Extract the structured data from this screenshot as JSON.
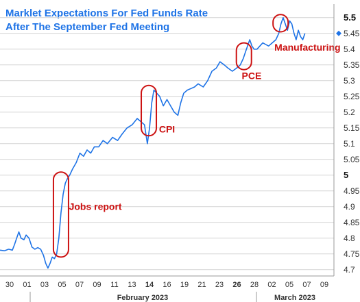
{
  "chart_data": {
    "type": "line",
    "title_lines": [
      "Marklet Expectations For Fed Funds Rate",
      "After The September Fed Meeting"
    ],
    "xlabel": "",
    "ylabel": "",
    "x_tick_labels": [
      "30",
      "01",
      "03",
      "05",
      "07",
      "09",
      "11",
      "13",
      "14",
      "16",
      "19",
      "21",
      "23",
      "26",
      "28",
      "02",
      "05",
      "07",
      "09"
    ],
    "bold_x_tick_labels": [
      "14",
      "26"
    ],
    "month_labels": [
      "February 2023",
      "March 2023"
    ],
    "y_tick_labels": [
      "4.7",
      "4.75",
      "4.8",
      "4.85",
      "4.9",
      "4.95",
      "5",
      "5.05",
      "5.1",
      "5.15",
      "5.2",
      "5.25",
      "5.3",
      "5.35",
      "5.4",
      "5.45",
      "5.5"
    ],
    "ylim": [
      4.68,
      5.53
    ],
    "last_value_marker": 5.45,
    "series": [
      {
        "color": "#1e73e6",
        "points": [
          [
            0.0,
            4.762
          ],
          [
            0.6,
            4.76
          ],
          [
            1.2,
            4.765
          ],
          [
            1.7,
            4.762
          ],
          [
            2.0,
            4.78
          ],
          [
            2.3,
            4.8
          ],
          [
            2.6,
            4.82
          ],
          [
            2.9,
            4.8
          ],
          [
            3.3,
            4.795
          ],
          [
            3.6,
            4.81
          ],
          [
            4.0,
            4.8
          ],
          [
            4.4,
            4.772
          ],
          [
            4.8,
            4.765
          ],
          [
            5.2,
            4.77
          ],
          [
            5.6,
            4.765
          ],
          [
            6.0,
            4.745
          ],
          [
            6.3,
            4.72
          ],
          [
            6.6,
            4.705
          ],
          [
            6.9,
            4.72
          ],
          [
            7.2,
            4.74
          ],
          [
            7.5,
            4.735
          ],
          [
            7.8,
            4.75
          ],
          [
            8.1,
            4.8
          ],
          [
            8.4,
            4.88
          ],
          [
            8.7,
            4.94
          ],
          [
            9.0,
            4.975
          ],
          [
            9.3,
            4.99
          ],
          [
            9.6,
            5.0
          ],
          [
            10.0,
            5.02
          ],
          [
            10.5,
            5.04
          ],
          [
            11.0,
            5.07
          ],
          [
            11.5,
            5.06
          ],
          [
            12.0,
            5.08
          ],
          [
            12.5,
            5.07
          ],
          [
            13.0,
            5.09
          ],
          [
            13.6,
            5.09
          ],
          [
            14.2,
            5.11
          ],
          [
            14.8,
            5.1
          ],
          [
            15.5,
            5.12
          ],
          [
            16.2,
            5.11
          ],
          [
            16.8,
            5.13
          ],
          [
            17.5,
            5.15
          ],
          [
            18.2,
            5.16
          ],
          [
            18.9,
            5.18
          ],
          [
            19.4,
            5.17
          ],
          [
            19.9,
            5.16
          ],
          [
            20.3,
            5.1
          ],
          [
            20.6,
            5.15
          ],
          [
            20.9,
            5.23
          ],
          [
            21.2,
            5.27
          ],
          [
            21.6,
            5.26
          ],
          [
            22.0,
            5.25
          ],
          [
            22.5,
            5.22
          ],
          [
            23.0,
            5.24
          ],
          [
            23.5,
            5.22
          ],
          [
            24.0,
            5.2
          ],
          [
            24.5,
            5.19
          ],
          [
            24.9,
            5.23
          ],
          [
            25.3,
            5.26
          ],
          [
            25.8,
            5.27
          ],
          [
            26.3,
            5.275
          ],
          [
            26.8,
            5.28
          ],
          [
            27.3,
            5.29
          ],
          [
            28.0,
            5.28
          ],
          [
            28.6,
            5.3
          ],
          [
            29.2,
            5.33
          ],
          [
            29.8,
            5.34
          ],
          [
            30.3,
            5.36
          ],
          [
            30.9,
            5.35
          ],
          [
            31.4,
            5.34
          ],
          [
            32.0,
            5.33
          ],
          [
            32.6,
            5.34
          ],
          [
            33.1,
            5.35
          ],
          [
            33.5,
            5.37
          ],
          [
            33.8,
            5.39
          ],
          [
            34.1,
            5.41
          ],
          [
            34.4,
            5.43
          ],
          [
            34.7,
            5.41
          ],
          [
            35.0,
            5.4
          ],
          [
            35.4,
            5.4
          ],
          [
            35.8,
            5.41
          ],
          [
            36.2,
            5.42
          ],
          [
            36.6,
            5.415
          ],
          [
            37.0,
            5.41
          ],
          [
            37.5,
            5.42
          ],
          [
            38.0,
            5.43
          ],
          [
            38.4,
            5.45
          ],
          [
            38.7,
            5.48
          ],
          [
            39.0,
            5.5
          ],
          [
            39.3,
            5.48
          ],
          [
            39.6,
            5.46
          ],
          [
            39.9,
            5.49
          ],
          [
            40.2,
            5.48
          ],
          [
            40.5,
            5.45
          ],
          [
            40.8,
            5.43
          ],
          [
            41.1,
            5.46
          ],
          [
            41.4,
            5.44
          ],
          [
            41.7,
            5.43
          ],
          [
            42.0,
            5.45
          ]
        ]
      }
    ],
    "annotations": [
      {
        "text": "Jobs report",
        "x": 9.5,
        "y": 4.89,
        "ellipse_x": 8.4,
        "ellipse_y": [
          4.74,
          5.01
        ]
      },
      {
        "text": "CPI",
        "x": 21.9,
        "y": 5.135,
        "ellipse_x": 20.5,
        "ellipse_y": [
          5.125,
          5.285
        ]
      },
      {
        "text": "PCE",
        "x": 33.3,
        "y": 5.305,
        "ellipse_x": 33.6,
        "ellipse_y": [
          5.335,
          5.42
        ]
      },
      {
        "text": "Manufacturing",
        "x": 37.8,
        "y": 5.395,
        "ellipse_x": 38.65,
        "ellipse_y": [
          5.455,
          5.51
        ]
      }
    ]
  }
}
